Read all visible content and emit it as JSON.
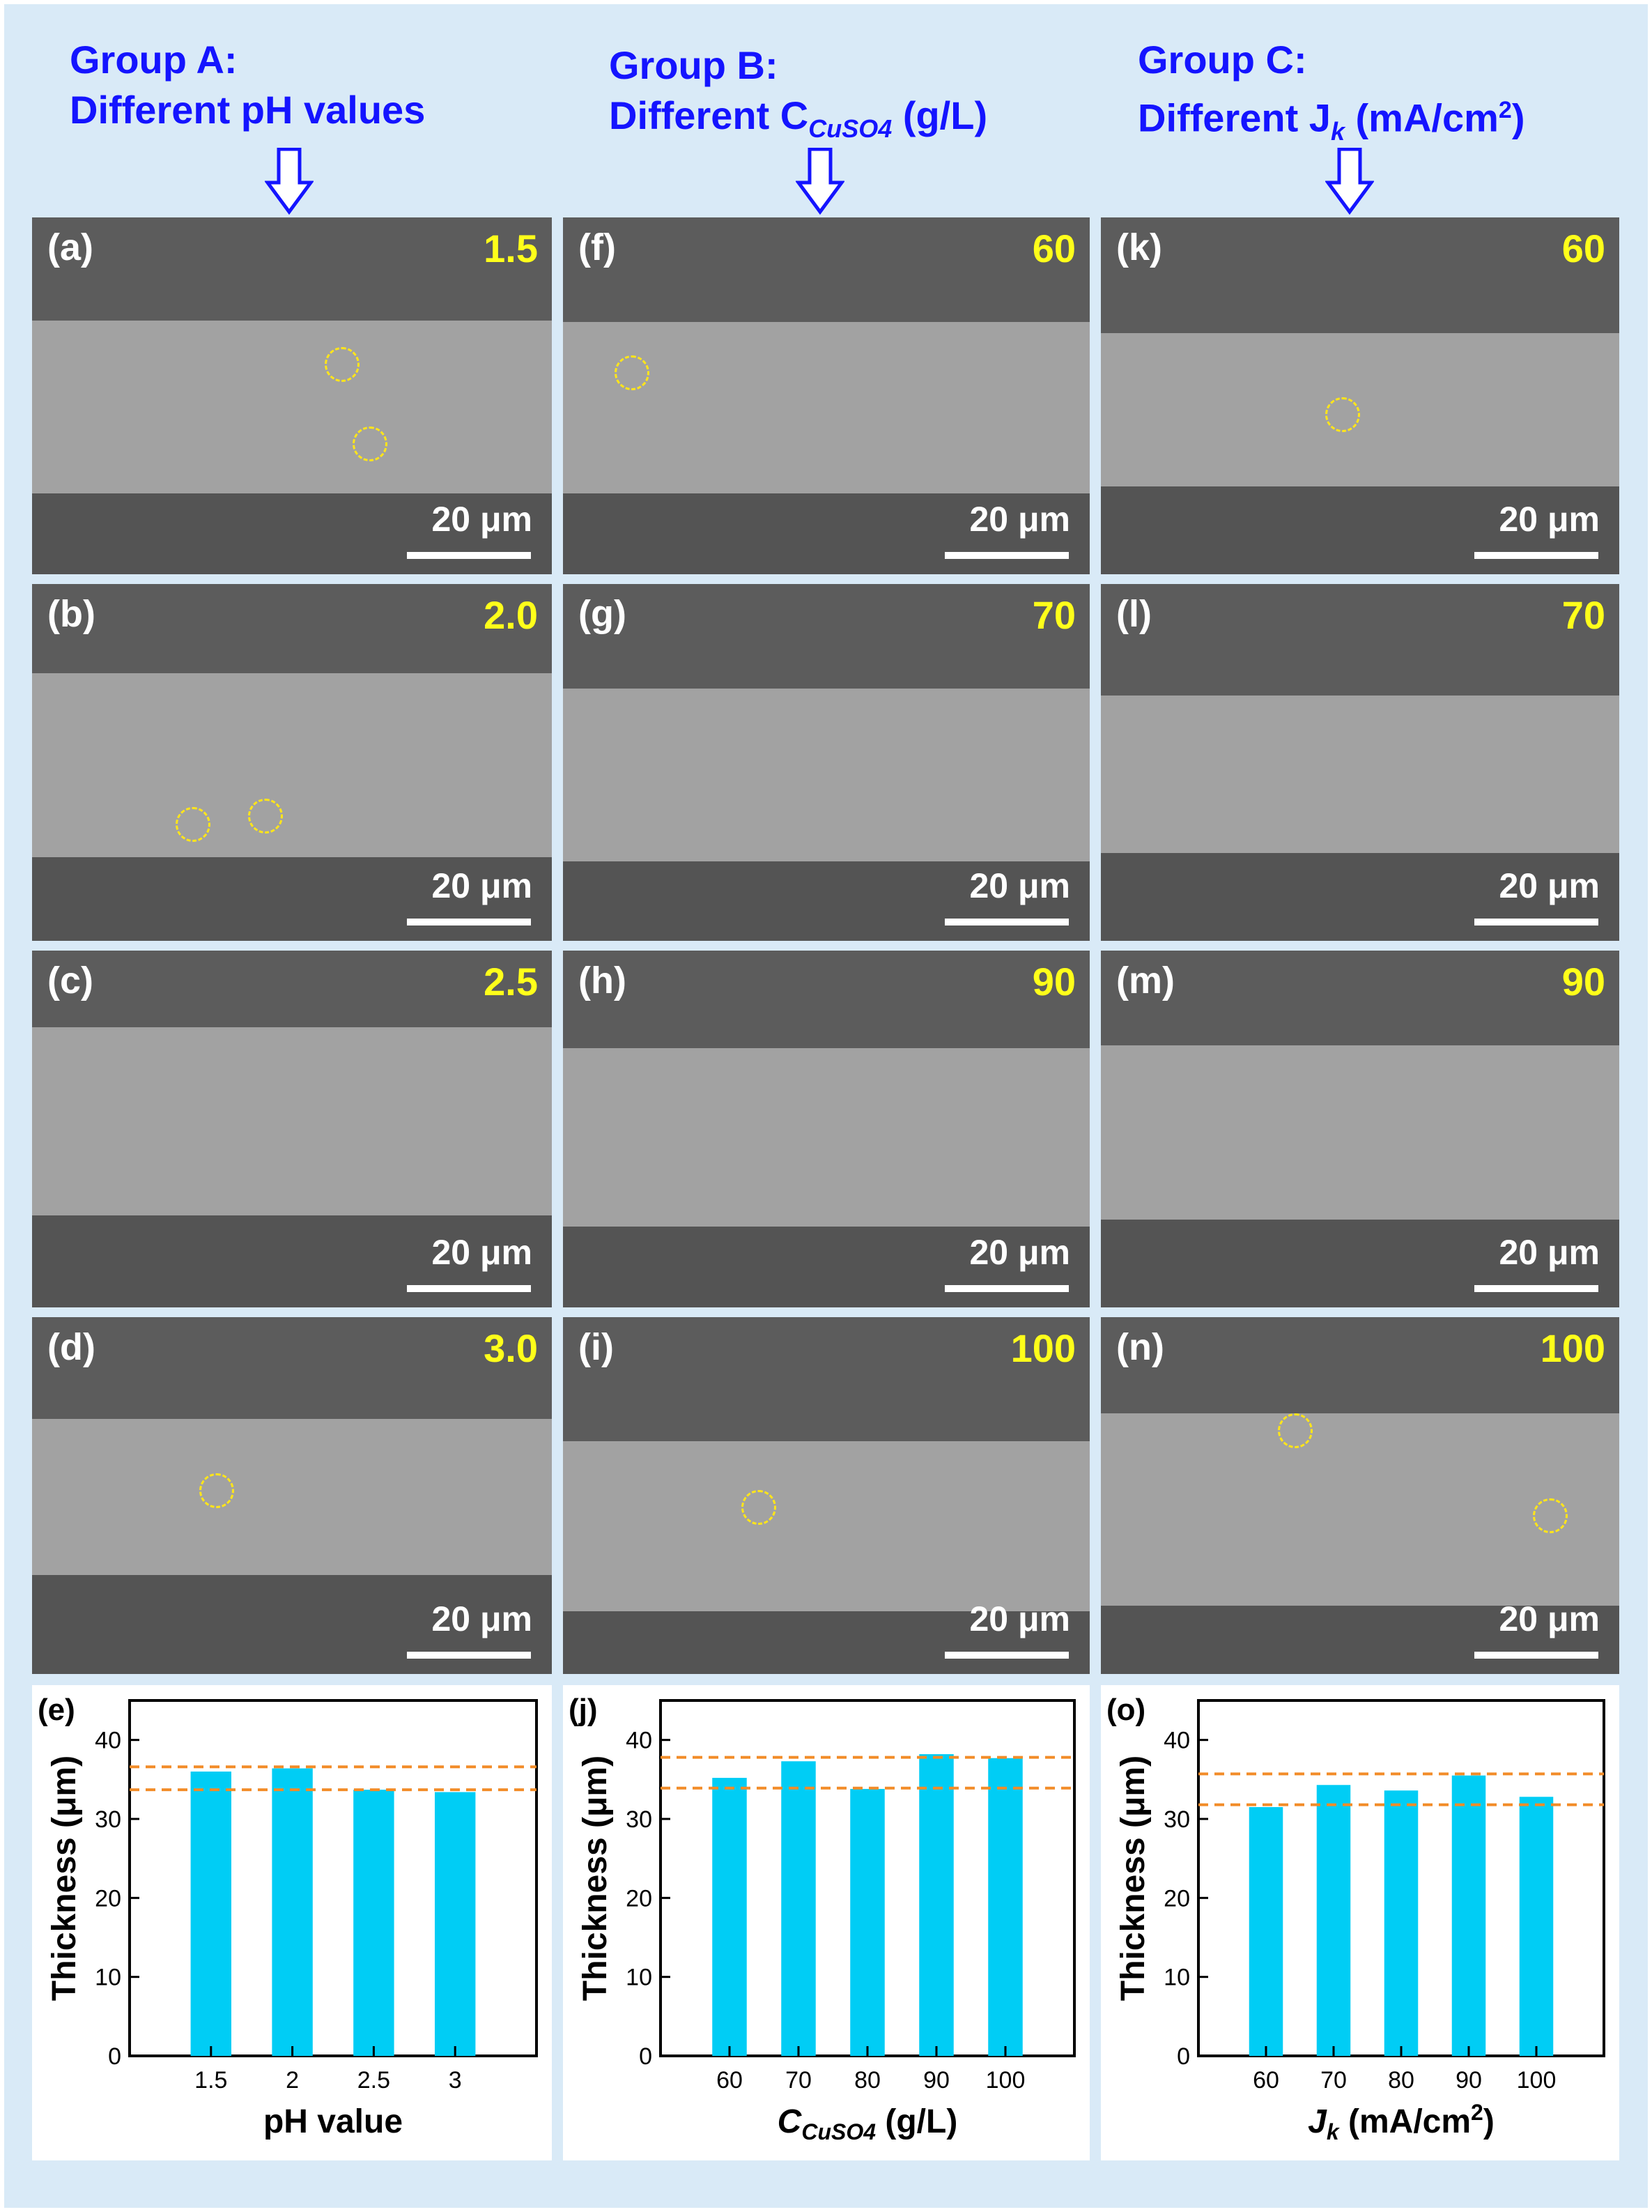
{
  "groups": [
    {
      "line1": "Group A:",
      "line2_pre": "Different pH values",
      "line2_sub": "",
      "line2_post": "",
      "line2_sup": "",
      "line2_end": ""
    },
    {
      "line1": "Group B:",
      "line2_pre": "Different C",
      "line2_sub": "CuSO4",
      "line2_post": " (g/L)",
      "line2_sup": "",
      "line2_end": ""
    },
    {
      "line1": "Group C:",
      "line2_pre": "Different J",
      "line2_sub": "k",
      "line2_post": " (mA/cm",
      "line2_sup": "2",
      "line2_end": ")"
    }
  ],
  "scale_bar": "20 μm",
  "panels": [
    {
      "label": "(a)",
      "value": "1.5"
    },
    {
      "label": "(b)",
      "value": "2.0"
    },
    {
      "label": "(c)",
      "value": "2.5"
    },
    {
      "label": "(d)",
      "value": "3.0"
    },
    {
      "label": "(f)",
      "value": "60"
    },
    {
      "label": "(g)",
      "value": "70"
    },
    {
      "label": "(h)",
      "value": "90"
    },
    {
      "label": "(i)",
      "value": "100"
    },
    {
      "label": "(k)",
      "value": "60"
    },
    {
      "label": "(l)",
      "value": "70"
    },
    {
      "label": "(m)",
      "value": "90"
    },
    {
      "label": "(n)",
      "value": "100"
    }
  ],
  "colors": {
    "title": "#1414ff",
    "bar": "#00cdf5",
    "ref_line": "#f28c28",
    "panel_value": "#ffff1a",
    "circle": "#ffe51a"
  },
  "chart_data": [
    {
      "type": "bar",
      "panel_label": "(e)",
      "categories": [
        "1.5",
        "2",
        "2.5",
        "3"
      ],
      "values": [
        36.0,
        36.4,
        33.7,
        33.4
      ],
      "ref_lines": [
        36.6,
        33.7
      ],
      "xlabel": "pH value",
      "xlabel_italic": "",
      "xlabel_rest": "",
      "xlabel_sup": "",
      "xlabel_end": "",
      "ylabel": "Thickness (μm)",
      "ylim": [
        0,
        45
      ],
      "yticks": [
        0,
        10,
        20,
        30,
        40
      ]
    },
    {
      "type": "bar",
      "panel_label": "(j)",
      "categories": [
        "60",
        "70",
        "80",
        "90",
        "100"
      ],
      "values": [
        35.2,
        37.3,
        33.8,
        38.2,
        37.7
      ],
      "ref_lines": [
        37.8,
        33.9
      ],
      "xlabel": "",
      "xlabel_italic": "C",
      "xlabel_sub": "CuSO4",
      "xlabel_rest": " (g/L)",
      "xlabel_sup": "",
      "xlabel_end": "",
      "ylabel": "Thickness (μm)",
      "ylim": [
        0,
        45
      ],
      "yticks": [
        0,
        10,
        20,
        30,
        40
      ]
    },
    {
      "type": "bar",
      "panel_label": "(o)",
      "categories": [
        "60",
        "70",
        "80",
        "90",
        "100"
      ],
      "values": [
        31.5,
        34.3,
        33.6,
        35.5,
        32.8
      ],
      "ref_lines": [
        35.7,
        31.8
      ],
      "xlabel": "",
      "xlabel_italic": "J",
      "xlabel_sub": "k",
      "xlabel_rest": " (mA/cm",
      "xlabel_sup": "2",
      "xlabel_end": ")",
      "ylabel": "Thickness (μm)",
      "ylim": [
        0,
        45
      ],
      "yticks": [
        0,
        10,
        20,
        30,
        40
      ]
    }
  ]
}
